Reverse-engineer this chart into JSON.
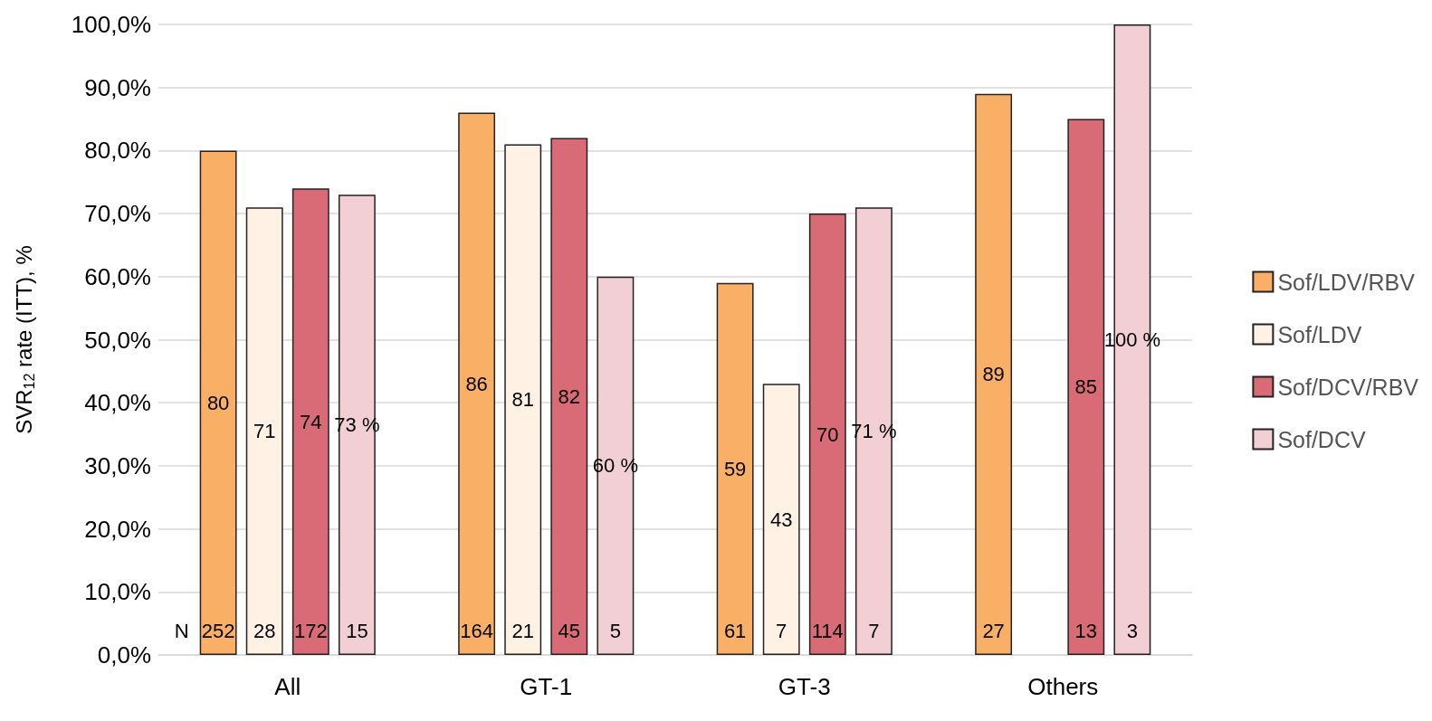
{
  "chart_data": {
    "type": "bar",
    "ylabel": "SVR$_{12}$ rate (ITT), %",
    "categories": [
      "All",
      "GT-1",
      "GT-3",
      "Others"
    ],
    "series": [
      {
        "name": "Sof/LDV/RBV",
        "color": "#f9b066",
        "values": [
          80,
          86,
          59,
          89
        ],
        "value_labels": [
          "80",
          "86",
          "59",
          "89"
        ]
      },
      {
        "name": "Sof/LDV",
        "color": "#fff2e5",
        "values": [
          71,
          81,
          43,
          null
        ],
        "value_labels": [
          "71",
          "81",
          "43",
          null
        ]
      },
      {
        "name": "Sof/DCV/RBV",
        "color": "#d96b77",
        "values": [
          74,
          82,
          70,
          85
        ],
        "value_labels": [
          "74",
          "82",
          "70",
          "85"
        ]
      },
      {
        "name": "Sof/DCV",
        "color": "#f2ced5",
        "values": [
          73,
          60,
          71,
          100
        ],
        "value_labels": [
          "73 %",
          "60 %",
          "71 %",
          "100 %"
        ]
      }
    ],
    "ylim": [
      0,
      100
    ],
    "yticks": [
      {
        "value": 0,
        "label": "0,0%"
      },
      {
        "value": 10,
        "label": "10,0%"
      },
      {
        "value": 20,
        "label": "20,0%"
      },
      {
        "value": 30,
        "label": "30,0%"
      },
      {
        "value": 40,
        "label": "40,0%"
      },
      {
        "value": 50,
        "label": "50,0%"
      },
      {
        "value": 60,
        "label": "60,0%"
      },
      {
        "value": 70,
        "label": "70,0%"
      },
      {
        "value": 80,
        "label": "80,0%"
      },
      {
        "value": 90,
        "label": "90,0%"
      },
      {
        "value": 100,
        "label": "100,0%"
      }
    ],
    "grid": "y",
    "legend": "right",
    "annotations": [
      "N",
      "252",
      "28",
      "172",
      "15",
      "164",
      "21",
      "45",
      "5",
      "61",
      "7",
      "114",
      "7",
      "27",
      "13",
      "3"
    ]
  }
}
